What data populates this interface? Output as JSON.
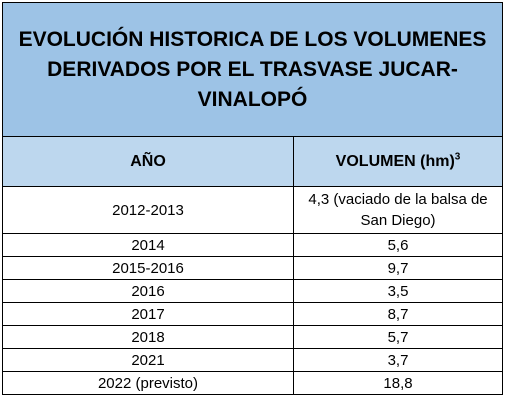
{
  "table": {
    "title": "EVOLUCIÓN  HISTORICA DE LOS VOLUMENES DERIVADOS POR EL TRASVASE JUCAR-VINALOPÓ",
    "headers": {
      "year": "AÑO",
      "volume": "VOLUMEN (hm)",
      "volume_superscript": "3"
    },
    "rows": [
      {
        "year": "2012-2013",
        "volume": "4,3 (vaciado de la balsa de San Diego)"
      },
      {
        "year": "2014",
        "volume": "5,6"
      },
      {
        "year": "2015-2016",
        "volume": "9,7"
      },
      {
        "year": "2016",
        "volume": "3,5"
      },
      {
        "year": "2017",
        "volume": "8,7"
      },
      {
        "year": "2018",
        "volume": "5,7"
      },
      {
        "year": "2021",
        "volume": "3,7"
      },
      {
        "year": "2022 (previsto)",
        "volume": "18,8"
      }
    ],
    "colors": {
      "title_bg": "#9dc3e6",
      "header_bg": "#bdd7ee",
      "border": "#000000"
    }
  }
}
